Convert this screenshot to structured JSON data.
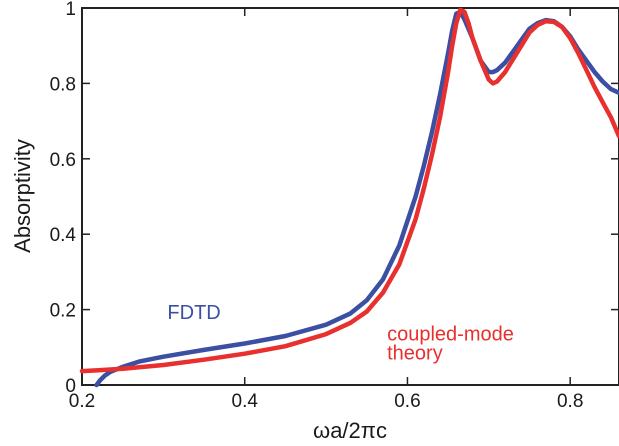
{
  "chart_data": {
    "type": "line",
    "xlabel": "ωa/2πc",
    "ylabel": "Absorptivity",
    "xlim": [
      0.2,
      0.86
    ],
    "ylim": [
      0,
      1
    ],
    "x_ticks": [
      0.2,
      0.4,
      0.6,
      0.8
    ],
    "x_tick_labels": [
      "0.2",
      "0.4",
      "0.6",
      "0.8"
    ],
    "y_ticks": [
      0,
      0.2,
      0.4,
      0.6,
      0.8,
      1
    ],
    "y_tick_labels": [
      "0",
      "0.2",
      "0.4",
      "0.6",
      "0.8",
      "1"
    ],
    "grid": false,
    "legend": "none",
    "series": [
      {
        "name": "FDTD",
        "color": "#3b4fa3",
        "x": [
          0.218,
          0.222,
          0.228,
          0.235,
          0.25,
          0.27,
          0.3,
          0.35,
          0.4,
          0.45,
          0.5,
          0.53,
          0.55,
          0.57,
          0.59,
          0.61,
          0.62,
          0.63,
          0.64,
          0.65,
          0.655,
          0.66,
          0.665,
          0.67,
          0.68,
          0.69,
          0.7,
          0.705,
          0.71,
          0.72,
          0.73,
          0.74,
          0.75,
          0.76,
          0.77,
          0.78,
          0.79,
          0.8,
          0.81,
          0.82,
          0.83,
          0.84,
          0.85,
          0.86
        ],
        "y": [
          0.0,
          0.012,
          0.025,
          0.035,
          0.048,
          0.062,
          0.075,
          0.093,
          0.11,
          0.13,
          0.16,
          0.19,
          0.225,
          0.28,
          0.37,
          0.5,
          0.58,
          0.67,
          0.77,
          0.88,
          0.94,
          0.985,
          0.99,
          0.97,
          0.92,
          0.86,
          0.83,
          0.83,
          0.835,
          0.855,
          0.885,
          0.915,
          0.945,
          0.96,
          0.968,
          0.965,
          0.95,
          0.925,
          0.89,
          0.86,
          0.83,
          0.805,
          0.785,
          0.775
        ]
      },
      {
        "name": "coupled-mode theory",
        "color": "#e8302e",
        "x": [
          0.2,
          0.22,
          0.25,
          0.3,
          0.35,
          0.4,
          0.45,
          0.5,
          0.53,
          0.55,
          0.57,
          0.59,
          0.61,
          0.62,
          0.63,
          0.64,
          0.65,
          0.655,
          0.66,
          0.665,
          0.67,
          0.675,
          0.68,
          0.69,
          0.7,
          0.705,
          0.71,
          0.72,
          0.73,
          0.74,
          0.75,
          0.76,
          0.77,
          0.78,
          0.79,
          0.8,
          0.81,
          0.82,
          0.83,
          0.84,
          0.85,
          0.86
        ],
        "y": [
          0.037,
          0.039,
          0.043,
          0.053,
          0.067,
          0.083,
          0.103,
          0.135,
          0.165,
          0.195,
          0.245,
          0.32,
          0.44,
          0.52,
          0.61,
          0.71,
          0.83,
          0.9,
          0.96,
          0.995,
          0.99,
          0.96,
          0.92,
          0.86,
          0.81,
          0.8,
          0.805,
          0.83,
          0.865,
          0.9,
          0.935,
          0.955,
          0.965,
          0.963,
          0.95,
          0.92,
          0.88,
          0.835,
          0.79,
          0.75,
          0.71,
          0.66
        ]
      }
    ],
    "annotations": [
      {
        "text": "FDTD",
        "color": "#3b4fa3",
        "at_x": 0.305,
        "at_y": 0.175
      },
      {
        "text": "coupled-mode",
        "color": "#e8302e",
        "at_x": 0.575,
        "at_y": 0.118
      },
      {
        "text": "theory",
        "color": "#e8302e",
        "at_x": 0.575,
        "at_y": 0.068
      }
    ]
  }
}
